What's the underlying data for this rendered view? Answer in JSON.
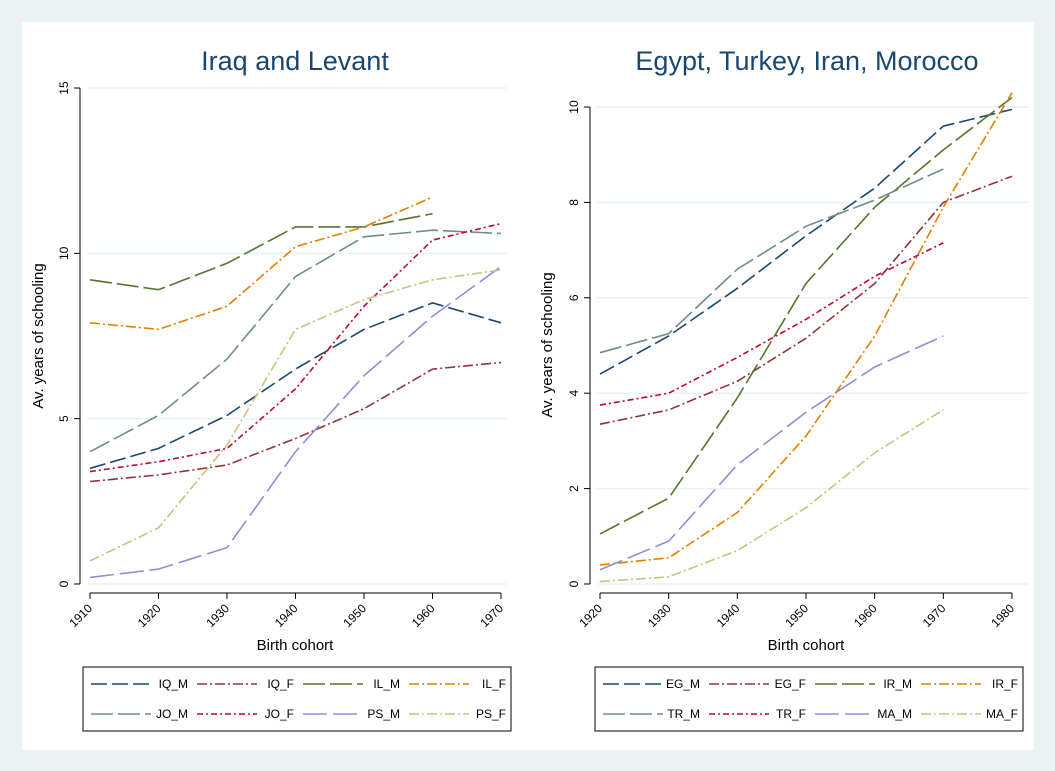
{
  "colors": {
    "background": "#eaf2f3",
    "plot_background": "#ffffff",
    "title": "#1a476f"
  },
  "chart_data": [
    {
      "type": "line",
      "title": "Iraq and Levant",
      "xlabel": "Birth cohort",
      "ylabel": "Av. years of schooling",
      "xlim": [
        1910,
        1970
      ],
      "ylim": [
        0,
        15
      ],
      "x_ticks": [
        "1910",
        "1920",
        "1930",
        "1940",
        "1950",
        "1960",
        "1970"
      ],
      "y_ticks": [
        "0",
        "5",
        "10",
        "15"
      ],
      "grid": true,
      "legend_position": "bottom",
      "x": [
        1910,
        1920,
        1930,
        1940,
        1950,
        1960,
        1970
      ],
      "series": [
        {
          "name": "IQ_M",
          "color": "#1a476f",
          "dash": "16 5",
          "values": [
            3.5,
            4.1,
            5.1,
            6.5,
            7.7,
            8.5,
            7.9
          ]
        },
        {
          "name": "IQ_F",
          "color": "#90353b",
          "dash": "10 3 2 3",
          "values": [
            3.1,
            3.3,
            3.6,
            4.4,
            5.3,
            6.5,
            6.7
          ]
        },
        {
          "name": "IL_M",
          "color": "#55752f",
          "dash": "22 5",
          "values": [
            9.2,
            8.9,
            9.7,
            10.8,
            10.8,
            11.2,
            null
          ]
        },
        {
          "name": "IL_F",
          "color": "#e37e00",
          "dash": "10 3 2 3",
          "values": [
            7.9,
            7.7,
            8.4,
            10.2,
            10.8,
            11.7,
            null
          ]
        },
        {
          "name": "JO_M",
          "color": "#6e8e84",
          "dash": "22 5",
          "values": [
            4.0,
            5.1,
            6.8,
            9.3,
            10.5,
            10.7,
            10.6
          ]
        },
        {
          "name": "JO_F",
          "color": "#c10534",
          "dash": "6 3 2 3",
          "values": [
            3.4,
            3.7,
            4.1,
            5.9,
            8.4,
            10.4,
            10.9
          ]
        },
        {
          "name": "PS_M",
          "color": "#938dd2",
          "dash": "24 6",
          "values": [
            0.2,
            0.45,
            1.1,
            4.0,
            6.3,
            8.1,
            9.6
          ]
        },
        {
          "name": "PS_F",
          "color": "#cac27e",
          "dash": "10 3 2 3",
          "values": [
            0.7,
            1.7,
            4.2,
            7.7,
            8.6,
            9.2,
            9.5
          ]
        }
      ]
    },
    {
      "type": "line",
      "title": "Egypt, Turkey, Iran, Morocco",
      "xlabel": "Birth cohort",
      "ylabel": "Av. years of schooling",
      "xlim": [
        1920,
        1980
      ],
      "ylim": [
        0,
        10
      ],
      "x_ticks": [
        "1920",
        "1930",
        "1940",
        "1950",
        "1960",
        "1970",
        "1980"
      ],
      "y_ticks": [
        "0",
        "2",
        "4",
        "6",
        "8",
        "10"
      ],
      "grid": true,
      "legend_position": "bottom",
      "x": [
        1920,
        1930,
        1940,
        1950,
        1960,
        1970,
        1980
      ],
      "series": [
        {
          "name": "EG_M",
          "color": "#1a476f",
          "dash": "16 5",
          "values": [
            4.4,
            5.2,
            6.2,
            7.3,
            8.3,
            9.6,
            9.95
          ]
        },
        {
          "name": "EG_F",
          "color": "#90353b",
          "dash": "10 3 2 3",
          "values": [
            3.35,
            3.65,
            4.25,
            5.15,
            6.3,
            8.0,
            8.55
          ]
        },
        {
          "name": "IR_M",
          "color": "#55752f",
          "dash": "22 5",
          "values": [
            1.05,
            1.8,
            3.9,
            6.3,
            7.9,
            9.1,
            10.2
          ]
        },
        {
          "name": "IR_F",
          "color": "#e37e00",
          "dash": "10 3 2 3",
          "values": [
            0.4,
            0.55,
            1.5,
            3.1,
            5.2,
            7.9,
            10.3
          ]
        },
        {
          "name": "TR_M",
          "color": "#6e8e84",
          "dash": "22 5",
          "values": [
            4.85,
            5.25,
            6.6,
            7.5,
            8.05,
            8.7,
            null
          ]
        },
        {
          "name": "TR_F",
          "color": "#c10534",
          "dash": "6 3 2 3",
          "values": [
            3.75,
            4.0,
            4.75,
            5.55,
            6.45,
            7.15,
            null
          ]
        },
        {
          "name": "MA_M",
          "color": "#938dd2",
          "dash": "24 6",
          "values": [
            0.3,
            0.9,
            2.5,
            3.6,
            4.55,
            5.2,
            null
          ]
        },
        {
          "name": "MA_F",
          "color": "#cac27e",
          "dash": "10 3 2 3",
          "values": [
            0.05,
            0.15,
            0.7,
            1.6,
            2.75,
            3.65,
            null
          ]
        }
      ]
    }
  ]
}
